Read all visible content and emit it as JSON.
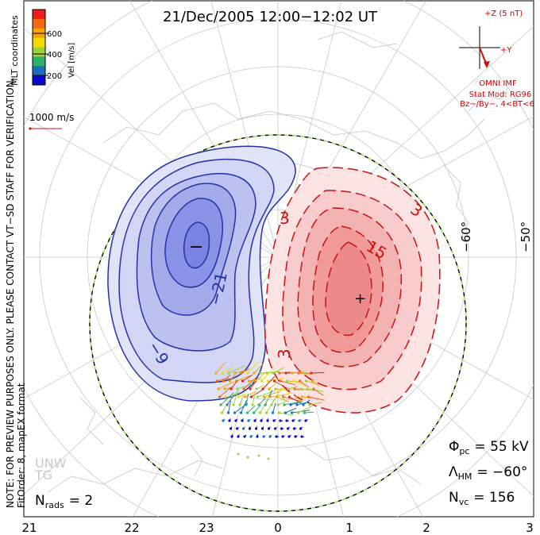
{
  "title": "21/Dec/2005  12:00−12:02  UT",
  "color_bar": {
    "ticks": [
      "600",
      "400",
      "200"
    ],
    "label": "Vel [m/s]",
    "colors": [
      "#ee1c1c",
      "#f06a10",
      "#f5a400",
      "#f0dc00",
      "#9fd23a",
      "#2fb06a",
      "#1a6fb8",
      "#0a0acc"
    ]
  },
  "coord_label": "MLT coordinates",
  "vector_scale": {
    "label": "1000 m/s"
  },
  "imf": {
    "label_top": "+Z (5 nT)",
    "label_right": "+Y",
    "omni": "OMNI IMF",
    "stat_mod": "Stat Mod: RG96",
    "bin": "Bz−/By−, 4<BT<6"
  },
  "notes": {
    "line1": "NOTE: FOR PREVIEW PURPOSES ONLY. PLEASE CONTACT VT−SD STAFF FOR VERIFICATION.",
    "line2": "FitOrder: 8, mapEX format"
  },
  "contours": {
    "neg_labels": [
      "−21",
      "−9"
    ],
    "pos_labels": [
      "3",
      "3",
      "3",
      "15"
    ],
    "min_marker": "−",
    "max_marker": "+"
  },
  "lat_labels": [
    "−60°",
    "−50°"
  ],
  "mlt_labels": [
    "21",
    "22",
    "23",
    "0",
    "1",
    "2",
    "3"
  ],
  "stats": {
    "phi_sym": "Φ",
    "phi_sub": "pc",
    "phi_val": "=  55 kV",
    "lam_sym": "Λ",
    "lam_sub": "HM",
    "lam_val": "=  −60°",
    "nvc_sym": "N",
    "nvc_sub": "vc",
    "nvc_val": "=  156",
    "nrads_sym": "N",
    "nrads_sub": "rads",
    "nrads_val": "=  2"
  },
  "watermark": [
    "UNW",
    "TG"
  ]
}
